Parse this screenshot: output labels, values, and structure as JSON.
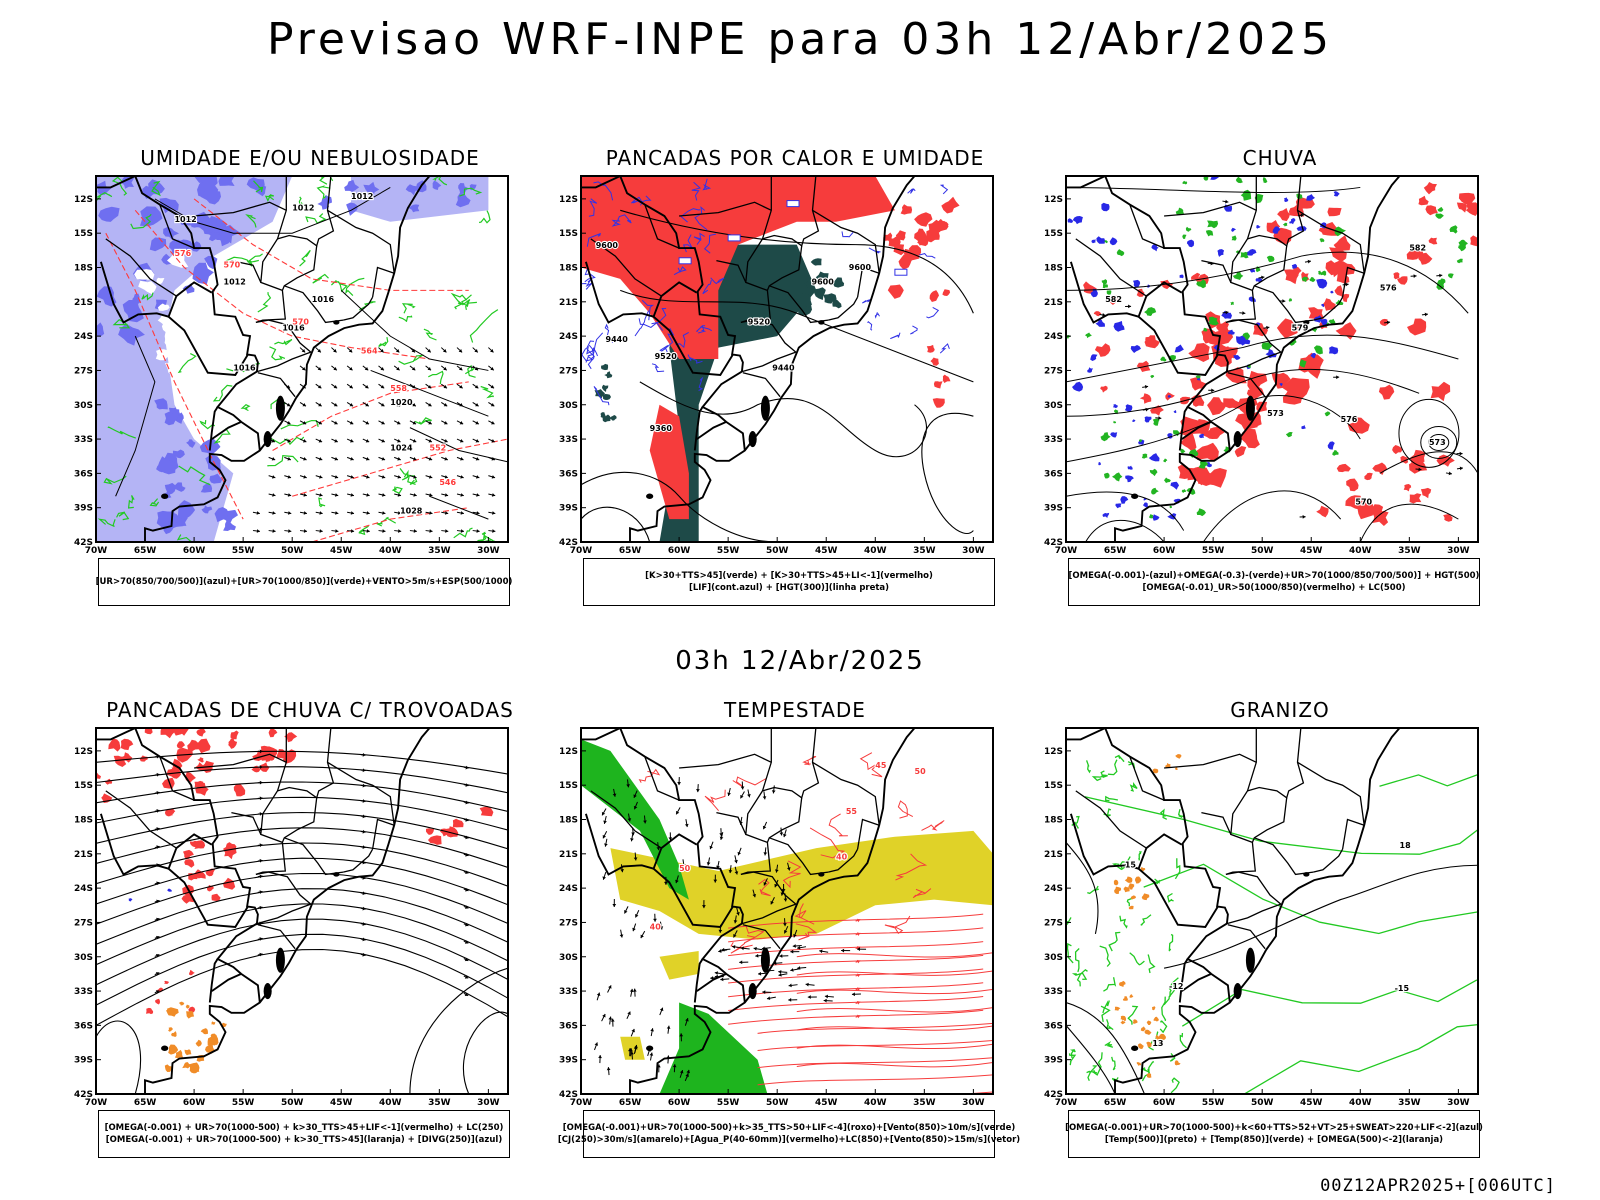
{
  "header": {
    "title": "Previsao WRF-INPE  para 03h 12/Abr/2025"
  },
  "mid_title": "03h 12/Abr/2025",
  "footer": "00Z12APR2025+[006UTC]",
  "axes": {
    "lat_labels": [
      "12S",
      "15S",
      "18S",
      "21S",
      "24S",
      "27S",
      "30S",
      "33S",
      "36S",
      "39S",
      "42S"
    ],
    "lon_labels": [
      "70W",
      "65W",
      "60W",
      "55W",
      "50W",
      "45W",
      "40W",
      "35W",
      "30W"
    ]
  },
  "panels": [
    {
      "title": "UMIDADE E/OU NEBULOSIDADE",
      "legend": [
        "[UR>70(850/700/500)](azul)+[UR>70(1000/850)](verde)+VENTO>5m/s+ESP(500/1000)"
      ],
      "contour_labels": [
        "1012",
        "1012",
        "1012",
        "1012",
        "1016",
        "1016",
        "1016",
        "1020",
        "1024",
        "1028",
        "576",
        "570",
        "570",
        "564",
        "558",
        "552",
        "546"
      ],
      "colors": {
        "blue": "#6f6ff0",
        "lightblue": "#b4b4f5",
        "green": "#22c922",
        "red": "#ff3a3a"
      }
    },
    {
      "title": "PANCADAS POR CALOR E UMIDADE",
      "legend": [
        "[K>30+TTS>45](verde) + [K>30+TTS>45+LI<-1](vermelho)",
        "[LIF](cont.azul) + [HGT(300)](linha preta)"
      ],
      "contour_labels": [
        "9600",
        "9600",
        "9600",
        "9520",
        "9520",
        "9440",
        "9440",
        "9360"
      ],
      "colors": {
        "red": "#f63c3c",
        "darkgreen": "#1e4a48",
        "blue": "#3232e6"
      }
    },
    {
      "title": "CHUVA",
      "legend": [
        "[OMEGA(-0.001)-(azul)+OMEGA(-0.3)-(verde)+UR>70(1000/850/700/500)] + HGT(500)",
        "[OMEGA(-0.01)_UR>50(1000/850)(vermelho) + LC(500)"
      ],
      "contour_labels": [
        "582",
        "579",
        "576",
        "576",
        "573",
        "573",
        "570",
        "582"
      ],
      "colors": {
        "red": "#f63c3c",
        "green": "#22b422",
        "blue": "#2828e6"
      }
    },
    {
      "title": "PANCADAS DE CHUVA C/ TROVOADAS",
      "legend": [
        "[OMEGA(-0.001) + UR>70(1000-500) + k>30_TTS>45+LIF<-1](vermelho) + LC(250)",
        "[OMEGA(-0.001) + UR>70(1000-500) + k>30_TTS>45](laranja) + [DIVG(250)](azul)"
      ],
      "contour_labels": [],
      "colors": {
        "red": "#f63c3c",
        "orange": "#f08c28",
        "blue": "#2828e6"
      }
    },
    {
      "title": "TEMPESTADE",
      "legend": [
        "[OMEGA(-0.001)+UR>70(1000-500)+k>35_TTS>50+LIF<-4](roxo)+[Vento(850)>10m/s](verde)",
        "[CJ(250)>30m/s](amarelo)+[Agua_P(40-60mm)](vermelho)+LC(850)+[Vento(850)>15m/s](vetor)"
      ],
      "contour_labels": [
        "40",
        "40",
        "50",
        "50",
        "55",
        "45"
      ],
      "colors": {
        "yellow": "#e0d228",
        "green": "#1eb41e",
        "red": "#f63c3c"
      }
    },
    {
      "title": "GRANIZO",
      "legend": [
        "[OMEGA(-0.001)+UR>70(1000-500)+k<60+TTS>52+VT>25+SWEAT>220+LIF<-2](azul)",
        "[Temp(500)](preto) + [Temp(850)](verde) + [OMEGA(500)<-2](laranja)"
      ],
      "contour_labels": [
        "-12",
        "-15",
        "13",
        "15",
        "18"
      ],
      "colors": {
        "green": "#22c922",
        "orange": "#f08c28"
      }
    }
  ]
}
